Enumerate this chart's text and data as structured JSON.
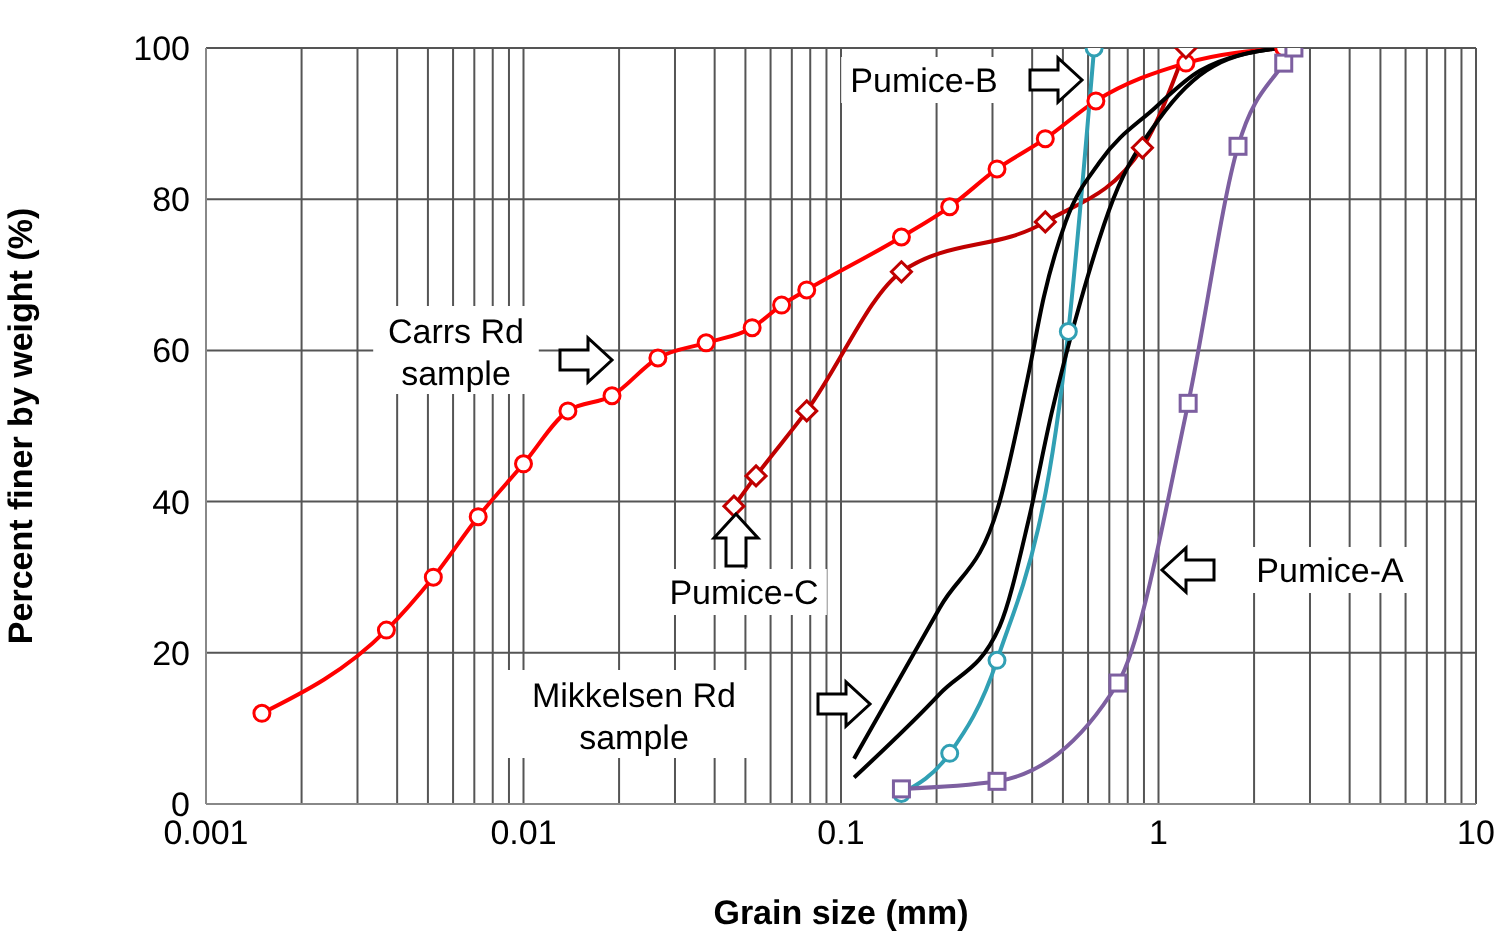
{
  "chart_data": {
    "type": "line",
    "xlabel": "Grain size (mm)",
    "ylabel": "Percent finer by weight (%)",
    "log": "x",
    "grid": true,
    "xlim": [
      0.001,
      10
    ],
    "ylim": [
      0,
      100
    ],
    "xticks": [
      0.001,
      {
        "value": 0.002,
        "label": null
      },
      {
        "value": 0.003,
        "label": null
      },
      {
        "value": 0.004,
        "label": null
      },
      {
        "value": 0.005,
        "label": null
      },
      {
        "value": 0.006,
        "label": null
      },
      {
        "value": 0.007,
        "label": null
      },
      {
        "value": 0.008,
        "label": null
      },
      {
        "value": 0.009,
        "label": null
      },
      0.01,
      {
        "value": 0.02,
        "label": null
      },
      {
        "value": 0.03,
        "label": null
      },
      {
        "value": 0.04,
        "label": null
      },
      {
        "value": 0.05,
        "label": null
      },
      {
        "value": 0.06,
        "label": null
      },
      {
        "value": 0.07,
        "label": null
      },
      {
        "value": 0.08,
        "label": null
      },
      {
        "value": 0.09,
        "label": null
      },
      0.1,
      {
        "value": 0.2,
        "label": null
      },
      {
        "value": 0.3,
        "label": null
      },
      {
        "value": 0.4,
        "label": null
      },
      {
        "value": 0.5,
        "label": null
      },
      {
        "value": 0.6,
        "label": null
      },
      {
        "value": 0.7,
        "label": null
      },
      {
        "value": 0.8,
        "label": null
      },
      {
        "value": 0.9,
        "label": null
      },
      1,
      {
        "value": 2,
        "label": null
      },
      {
        "value": 3,
        "label": null
      },
      {
        "value": 4,
        "label": null
      },
      {
        "value": 5,
        "label": null
      },
      {
        "value": 6,
        "label": null
      },
      {
        "value": 7,
        "label": null
      },
      {
        "value": 8,
        "label": null
      },
      {
        "value": 9,
        "label": null
      },
      10
    ],
    "yticks": [
      0,
      20,
      40,
      60,
      80,
      100
    ],
    "series": [
      {
        "color": "#ff0000",
        "marker": "circle",
        "x": [
          0.0015,
          0.0037,
          0.0052,
          0.0072,
          0.01,
          0.0138,
          0.019,
          0.0265,
          0.0376,
          0.0525,
          0.065,
          0.078,
          0.155,
          0.22,
          0.31,
          0.44,
          0.635,
          1.22,
          2.48
        ],
        "values": [
          12,
          23,
          30,
          38,
          45,
          52,
          54,
          59,
          61,
          63,
          66,
          68,
          75,
          79,
          84,
          88,
          93,
          98,
          100
        ]
      },
      {
        "color": "#c00000",
        "marker": "diamond",
        "x": [
          0.046,
          0.054,
          0.078,
          0.155,
          0.44,
          0.89,
          1.22
        ],
        "values": [
          39.4,
          43.4,
          52,
          70.4,
          77,
          86.8,
          100
        ]
      },
      {
        "color": "#31a0b4",
        "marker": "circle",
        "x": [
          0.155,
          0.22,
          0.31,
          0.52,
          0.627
        ],
        "values": [
          1.4,
          6.7,
          19,
          62.5,
          100
        ]
      },
      {
        "color": "#7d5fa0",
        "marker": "square",
        "x": [
          0.155,
          0.31,
          0.745,
          1.24,
          1.78,
          2.48,
          2.67
        ],
        "values": [
          2,
          3,
          16,
          53,
          87,
          98,
          100
        ]
      },
      {
        "color": "#000000",
        "marker": "none",
        "x": [
          0.11,
          0.205,
          0.316,
          0.39,
          0.435,
          0.51,
          0.655,
          0.97,
          1.35,
          2.4
        ],
        "values": [
          6,
          26,
          40,
          57,
          67,
          77,
          85,
          92,
          97,
          100
        ]
      },
      {
        "color": "#000000",
        "marker": "none",
        "x": [
          0.11,
          0.205,
          0.316,
          0.39,
          0.46,
          0.57,
          0.72,
          1.0,
          1.49,
          2.4
        ],
        "values": [
          3.5,
          14.6,
          23.5,
          37.6,
          51.6,
          66.7,
          80,
          90.5,
          97.6,
          100
        ]
      }
    ],
    "annotations": [
      "Pumice-B",
      "Carrs Rd\nsample",
      "Pumice-C",
      "Pumice-A",
      "Mikkelsen  Rd\nsample"
    ]
  }
}
